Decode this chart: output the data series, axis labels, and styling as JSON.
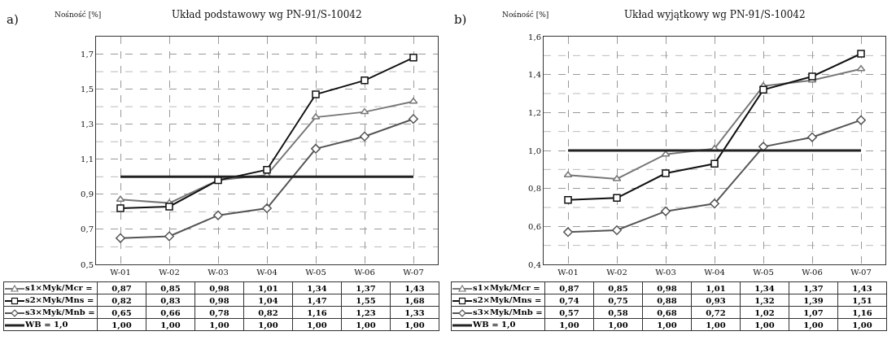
{
  "chart_data": [
    {
      "type": "line",
      "title": "Układ podstawowy wg PN-91/S-10042",
      "ylabel": "Nośność [%]",
      "annotations": [
        "a)"
      ],
      "categories": [
        "W-01",
        "W-02",
        "W-03",
        "W-04",
        "W-05",
        "W-06",
        "W-07"
      ],
      "series": [
        {
          "name": "s1×Myk/Mcr =",
          "color": "#777777",
          "marker": "triangle",
          "values": [
            0.87,
            0.85,
            0.98,
            1.01,
            1.34,
            1.37,
            1.43
          ],
          "value_labels": [
            "0,87",
            "0,85",
            "0,98",
            "1,01",
            "1,34",
            "1,37",
            "1,43"
          ]
        },
        {
          "name": "s2×Myk/Mns =",
          "color": "#111111",
          "marker": "square",
          "values": [
            0.82,
            0.83,
            0.98,
            1.04,
            1.47,
            1.55,
            1.68
          ],
          "value_labels": [
            "0,82",
            "0,83",
            "0,98",
            "1,04",
            "1,47",
            "1,55",
            "1,68"
          ]
        },
        {
          "name": "s3×Myk/Mnb =",
          "color": "#555555",
          "marker": "diamond",
          "values": [
            0.65,
            0.66,
            0.78,
            0.82,
            1.16,
            1.23,
            1.33
          ],
          "value_labels": [
            "0,65",
            "0,66",
            "0,78",
            "0,82",
            "1,16",
            "1,23",
            "1,33"
          ]
        },
        {
          "name": "WB = 1,0",
          "color": "#222222",
          "marker": "none",
          "values": [
            1.0,
            1.0,
            1.0,
            1.0,
            1.0,
            1.0,
            1.0
          ],
          "value_labels": [
            "1,00",
            "1,00",
            "1,00",
            "1,00",
            "1,00",
            "1,00",
            "1,00"
          ]
        }
      ],
      "ylim": [
        0.5,
        1.8
      ],
      "yticks": [
        {
          "value": 0.5,
          "label": "0,5"
        },
        {
          "value": 0.7,
          "label": "0,7"
        },
        {
          "value": 0.9,
          "label": "0,9"
        },
        {
          "value": 1.1,
          "label": "1,1"
        },
        {
          "value": 1.3,
          "label": "1,3"
        },
        {
          "value": 1.5,
          "label": "1,5"
        },
        {
          "value": 1.7,
          "label": "1,7"
        }
      ],
      "grid": true,
      "legend": "bottom"
    },
    {
      "type": "line",
      "title": "Układ wyjątkowy wg PN-91/S-10042",
      "ylabel": "Nośność [%]",
      "annotations": [
        "b)"
      ],
      "categories": [
        "W-01",
        "W-02",
        "W-03",
        "W-04",
        "W-05",
        "W-06",
        "W-07"
      ],
      "series": [
        {
          "name": "s1×Myk/Mcr =",
          "color": "#777777",
          "marker": "triangle",
          "values": [
            0.87,
            0.85,
            0.98,
            1.01,
            1.34,
            1.37,
            1.43
          ],
          "value_labels": [
            "0,87",
            "0,85",
            "0,98",
            "1,01",
            "1,34",
            "1,37",
            "1,43"
          ]
        },
        {
          "name": "s2×Myk/Mns =",
          "color": "#111111",
          "marker": "square",
          "values": [
            0.74,
            0.75,
            0.88,
            0.93,
            1.32,
            1.39,
            1.51
          ],
          "value_labels": [
            "0,74",
            "0,75",
            "0,88",
            "0,93",
            "1,32",
            "1,39",
            "1,51"
          ]
        },
        {
          "name": "s3×Myk/Mnb =",
          "color": "#555555",
          "marker": "diamond",
          "values": [
            0.57,
            0.58,
            0.68,
            0.72,
            1.02,
            1.07,
            1.16
          ],
          "value_labels": [
            "0,57",
            "0,58",
            "0,68",
            "0,72",
            "1,02",
            "1,07",
            "1,16"
          ]
        },
        {
          "name": "WB = 1,0",
          "color": "#222222",
          "marker": "none",
          "values": [
            1.0,
            1.0,
            1.0,
            1.0,
            1.0,
            1.0,
            1.0
          ],
          "value_labels": [
            "1,00",
            "1,00",
            "1,00",
            "1,00",
            "1,00",
            "1,00",
            "1,00"
          ]
        }
      ],
      "ylim": [
        0.4,
        1.6
      ],
      "yticks": [
        {
          "value": 0.4,
          "label": "0,4"
        },
        {
          "value": 0.6,
          "label": "0,6"
        },
        {
          "value": 0.8,
          "label": "0,8"
        },
        {
          "value": 1.0,
          "label": "1,0"
        },
        {
          "value": 1.2,
          "label": "1,2"
        },
        {
          "value": 1.4,
          "label": "1,4"
        },
        {
          "value": 1.6,
          "label": "1,6"
        }
      ],
      "grid": true,
      "legend": "bottom"
    }
  ]
}
